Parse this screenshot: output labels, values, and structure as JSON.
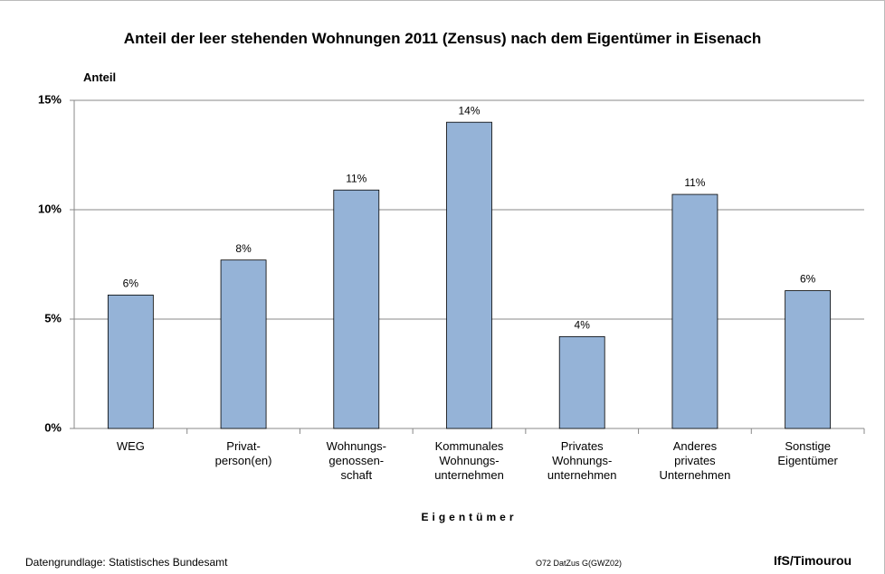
{
  "chart_data": {
    "type": "bar",
    "title": "Anteil der leer stehenden Wohnungen 2011 (Zensus) nach dem Eigentümer in Eisenach",
    "y_label": "Anteil",
    "x_label": "Eigentümer",
    "categories": [
      "WEG",
      "Privat-\nperson(en)",
      "Wohnungs-\ngenossen-\nschaft",
      "Kommunales\nWohnungs-\nunternehmen",
      "Privates\nWohnungs-\nunternehmen",
      "Anderes\nprivates\nUnternehmen",
      "Sonstige\nEigentümer"
    ],
    "values": [
      6.1,
      7.7,
      10.9,
      14.0,
      4.2,
      10.7,
      6.3
    ],
    "value_labels": [
      "6%",
      "8%",
      "11%",
      "14%",
      "4%",
      "11%",
      "6%"
    ],
    "color": "#95b3d7",
    "ylim": [
      0,
      15
    ],
    "yticks": [
      {
        "value": 0,
        "label": "0%"
      },
      {
        "value": 5,
        "label": "5%"
      },
      {
        "value": 10,
        "label": "10%"
      },
      {
        "value": 15,
        "label": "15%"
      }
    ],
    "grid": true,
    "source": "Datengrundlage: Statistisches Bundesamt",
    "code": "O72 DatZus G(GWZ02)",
    "author": "IfS/Timourou"
  }
}
